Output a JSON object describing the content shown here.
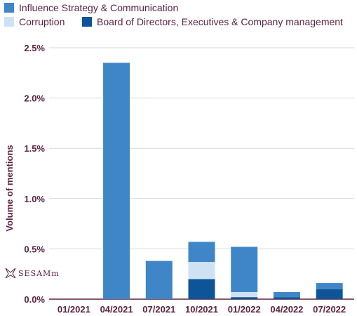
{
  "chart_data": {
    "type": "bar",
    "stacked": true,
    "categories": [
      "01/2021",
      "04/2021",
      "07/2021",
      "10/2021",
      "01/2022",
      "04/2022",
      "07/2022"
    ],
    "series": [
      {
        "name": "Board of Directors, Executives & Company management",
        "color": "#0d5598",
        "values": [
          0,
          0,
          0,
          0.2,
          0.02,
          0.02,
          0.1
        ]
      },
      {
        "name": "Corruption",
        "color": "#cfe2f3",
        "values": [
          0,
          0,
          0,
          0.17,
          0.05,
          0,
          0
        ]
      },
      {
        "name": "Influence Strategy & Communication",
        "color": "#3f86c9",
        "values": [
          0,
          2.35,
          0.38,
          0.2,
          0.45,
          0.05,
          0.06
        ]
      }
    ],
    "legend_order": [
      "Influence Strategy & Communication",
      "Corruption",
      "Board of Directors, Executives & Company management"
    ],
    "ylabel": "Volume of mentions",
    "xlabel": "",
    "ylim": [
      0,
      2.5
    ],
    "yticks": [
      "0.0%",
      "0.5%",
      "1.0%",
      "1.5%",
      "2.0%",
      "2.5%"
    ],
    "ytick_values": [
      0,
      0.5,
      1.0,
      1.5,
      2.0,
      2.5
    ],
    "grid": true,
    "legend_position": "top-left"
  },
  "watermark": "SESAMm",
  "axis_color": "#5b2340",
  "grid_color": "#d9d9d9"
}
